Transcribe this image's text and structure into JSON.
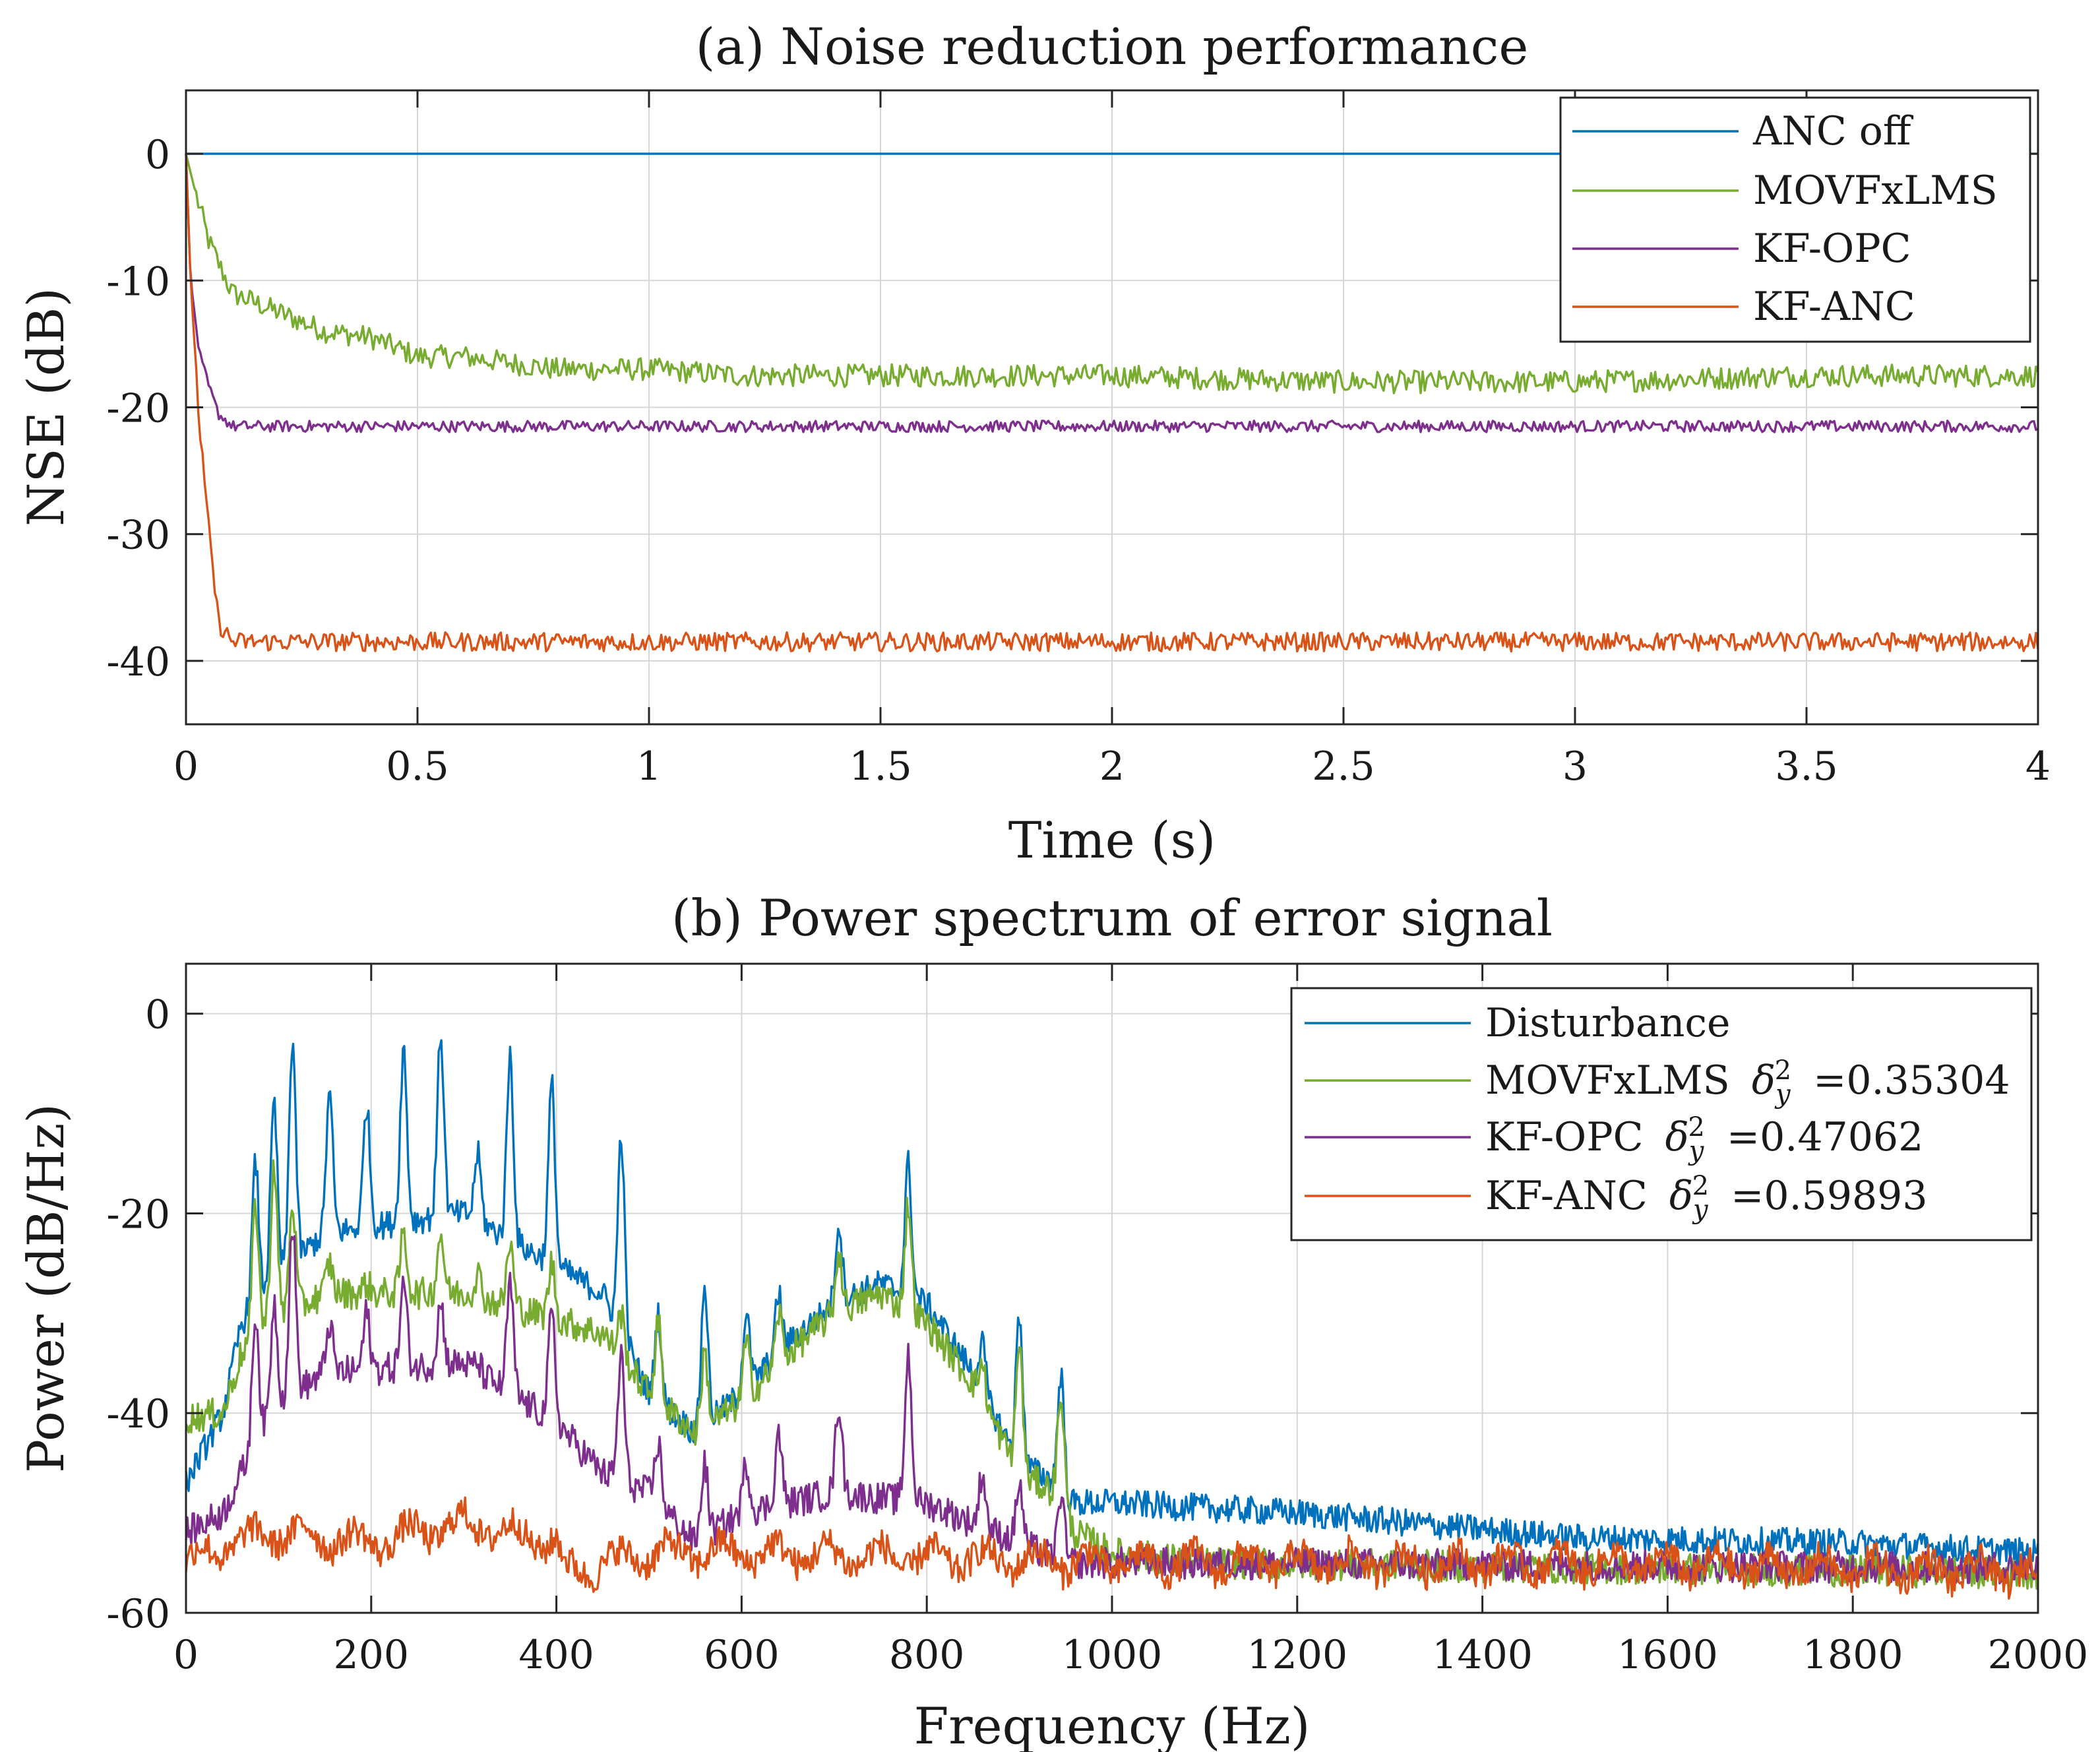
{
  "chart_data": [
    {
      "type": "line",
      "title": "(a) Noise reduction performance",
      "xlabel": "Time (s)",
      "ylabel": "NSE (dB)",
      "xlim": [
        0,
        4
      ],
      "ylim": [
        -45,
        5
      ],
      "xticks": [
        0,
        0.5,
        1,
        1.5,
        2,
        2.5,
        3,
        3.5,
        4
      ],
      "xtick_labels": [
        "0",
        "0.5",
        "1",
        "1.5",
        "2",
        "2.5",
        "3",
        "3.5",
        "4"
      ],
      "yticks": [
        0,
        -10,
        -20,
        -30,
        -40
      ],
      "ytick_labels": [
        "0",
        "-10",
        "-20",
        "-30",
        "-40"
      ],
      "grid": true,
      "legend_position": "top-right",
      "series": [
        {
          "name": "ANC off",
          "legend": "ANC off",
          "color": "#0072BD",
          "x": [
            0,
            4
          ],
          "y": [
            0,
            0
          ]
        },
        {
          "name": "MOVFxLMS",
          "legend": "MOVFxLMS",
          "color": "#77AC30",
          "x": [
            0,
            0.02,
            0.05,
            0.1,
            0.2,
            0.3,
            0.4,
            0.5,
            0.6,
            0.8,
            1.0,
            1.2,
            1.5,
            2.0,
            2.5,
            3.0,
            3.5,
            4.0
          ],
          "y": [
            0,
            -3,
            -7,
            -11,
            -12.5,
            -14,
            -14.5,
            -16,
            -16,
            -17,
            -17,
            -17.5,
            -17.5,
            -17.5,
            -18,
            -18,
            -17.5,
            -17.5
          ]
        },
        {
          "name": "KF-OPC",
          "legend": "KF-OPC",
          "color": "#7E2F8E",
          "x": [
            0,
            0.01,
            0.03,
            0.05,
            0.07,
            0.1,
            0.2,
            0.5,
            1.0,
            2.0,
            3.0,
            4.0
          ],
          "y": [
            0,
            -10,
            -16,
            -18.5,
            -20.5,
            -21.5,
            -21.5,
            -21.5,
            -21.5,
            -21.5,
            -21.5,
            -21.5
          ]
        },
        {
          "name": "KF-ANC",
          "legend": "KF-ANC",
          "color": "#D95319",
          "x": [
            0,
            0.01,
            0.03,
            0.05,
            0.07,
            0.1,
            0.2,
            0.5,
            1.0,
            2.0,
            3.0,
            4.0
          ],
          "y": [
            0,
            -10,
            -22,
            -30,
            -37,
            -38.5,
            -38.5,
            -38.5,
            -38.5,
            -38.5,
            -38.5,
            -38.5
          ]
        }
      ]
    },
    {
      "type": "line",
      "title": "(b) Power spectrum of error signal",
      "xlabel": "Frequency (Hz)",
      "ylabel": "Power (dB/Hz)",
      "xlim": [
        0,
        2000
      ],
      "ylim": [
        -60,
        5
      ],
      "xticks": [
        0,
        200,
        400,
        600,
        800,
        1000,
        1200,
        1400,
        1600,
        1800,
        2000
      ],
      "xtick_labels": [
        "0",
        "200",
        "400",
        "600",
        "800",
        "1000",
        "1200",
        "1400",
        "1600",
        "1800",
        "2000"
      ],
      "yticks": [
        0,
        -20,
        -40,
        -60
      ],
      "ytick_labels": [
        "0",
        "-20",
        "-40",
        "-60"
      ],
      "grid": true,
      "legend_position": "top-right",
      "peaks": [
        {
          "f": 75,
          "d": -15,
          "m": -19,
          "k": -30
        },
        {
          "f": 95,
          "d": -9,
          "m": -15,
          "k": -29
        },
        {
          "f": 115,
          "d": -2.5,
          "m": -19,
          "k": -21
        },
        {
          "f": 155,
          "d": -8,
          "m": -25,
          "k": -31
        },
        {
          "f": 195,
          "d": -9,
          "m": -27,
          "k": -30
        },
        {
          "f": 235,
          "d": -3.5,
          "m": -22,
          "k": -27
        },
        {
          "f": 275,
          "d": -2,
          "m": -22,
          "k": -29
        },
        {
          "f": 315,
          "d": -14,
          "m": -26,
          "k": -35
        },
        {
          "f": 350,
          "d": -4,
          "m": -23,
          "k": -27
        },
        {
          "f": 395,
          "d": -7,
          "m": -25,
          "k": -30
        },
        {
          "f": 470,
          "d": -12,
          "m": -30,
          "k": -34
        },
        {
          "f": 510,
          "d": -30,
          "m": -31,
          "k": -43
        },
        {
          "f": 560,
          "d": -27,
          "m": -34,
          "k": -45
        },
        {
          "f": 605,
          "d": -30,
          "m": -33,
          "k": -45
        },
        {
          "f": 640,
          "d": -28,
          "m": -30,
          "k": -42
        },
        {
          "f": 705,
          "d": -21,
          "m": -24,
          "k": -39
        },
        {
          "f": 780,
          "d": -15,
          "m": -19,
          "k": -34
        },
        {
          "f": 860,
          "d": -33,
          "m": -35,
          "k": -46
        },
        {
          "f": 900,
          "d": -30,
          "m": -33,
          "k": -47
        },
        {
          "f": 945,
          "d": -36,
          "m": -38,
          "k": -48
        }
      ],
      "series": [
        {
          "name": "Disturbance",
          "legend": "Disturbance",
          "color": "#0072BD",
          "x": [
            0,
            40,
            60,
            90,
            150,
            300,
            450,
            500,
            550,
            600,
            650,
            700,
            750,
            800,
            850,
            900,
            940,
            950,
            1000,
            1200,
            1500,
            1800,
            2000
          ],
          "y": [
            -47,
            -40,
            -31,
            -27,
            -22,
            -20,
            -28,
            -38,
            -42,
            -38,
            -33,
            -29,
            -27,
            -29,
            -36,
            -45,
            -47,
            -49,
            -49,
            -50,
            -52.5,
            -53,
            -54
          ]
        },
        {
          "name": "MOVFxLMS",
          "legend": "MOVFxLMS",
          "legend_delta": "=0.35304",
          "color": "#77AC30",
          "x": [
            0,
            40,
            60,
            90,
            150,
            300,
            450,
            500,
            550,
            600,
            650,
            700,
            750,
            800,
            850,
            900,
            940,
            960,
            1000,
            1100,
            1500,
            2000
          ],
          "y": [
            -40.5,
            -40,
            -34,
            -31,
            -28,
            -28,
            -32,
            -38,
            -42,
            -39,
            -34,
            -30,
            -28,
            -31,
            -37,
            -46,
            -48,
            -52,
            -54,
            -55,
            -55.5,
            -56
          ]
        },
        {
          "name": "KF-OPC",
          "legend": "KF-OPC",
          "legend_delta": "=0.47062",
          "color": "#7E2F8E",
          "x": [
            0,
            40,
            70,
            100,
            150,
            300,
            400,
            450,
            500,
            550,
            600,
            700,
            800,
            900,
            950,
            1000,
            2000
          ],
          "y": [
            -52,
            -50,
            -44,
            -39,
            -36,
            -35,
            -41,
            -46,
            -48,
            -53,
            -50,
            -48,
            -49,
            -53,
            -55,
            -55,
            -55.5
          ]
        },
        {
          "name": "KF-ANC",
          "legend": "KF-ANC",
          "legend_delta": "=0.59893",
          "color": "#D95319",
          "x": [
            0,
            50,
            100,
            200,
            300,
            400,
            410,
            500,
            600,
            800,
            1000,
            1500,
            2000
          ],
          "y": [
            -55,
            -53,
            -52,
            -53,
            -51,
            -53,
            -56,
            -54,
            -54,
            -54.5,
            -55,
            -55,
            -56
          ]
        }
      ]
    }
  ],
  "legend_common": {
    "delta_symbol": "δ",
    "delta_sub": "y",
    "delta_sup": "2"
  }
}
